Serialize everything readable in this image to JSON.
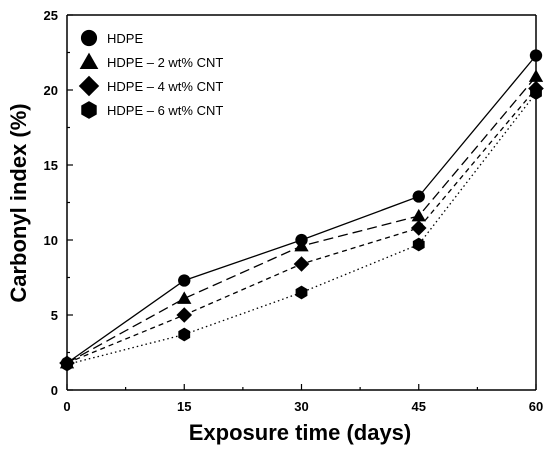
{
  "chart_data": {
    "type": "line",
    "xlabel": "Exposure time (days)",
    "ylabel": "Carbonyl index (%)",
    "xlim": [
      0,
      60
    ],
    "ylim": [
      0,
      25
    ],
    "x_ticks": [
      0,
      15,
      30,
      45,
      60
    ],
    "y_ticks": [
      0,
      5,
      10,
      15,
      20,
      25
    ],
    "grid": false,
    "legend_position": "top-left",
    "x": [
      0,
      15,
      30,
      45,
      60
    ],
    "series": [
      {
        "name": "HDPE",
        "marker": "circle",
        "line_style": "solid",
        "values": [
          1.8,
          7.3,
          10.0,
          12.9,
          22.3
        ]
      },
      {
        "name": "HDPE – 2 wt% CNT",
        "marker": "triangle",
        "line_style": "long-dash",
        "values": [
          1.8,
          6.1,
          9.6,
          11.6,
          20.9
        ]
      },
      {
        "name": "HDPE – 4 wt% CNT",
        "marker": "diamond",
        "line_style": "short-dash",
        "values": [
          1.8,
          5.0,
          8.4,
          10.8,
          20.1
        ]
      },
      {
        "name": "HDPE – 6 wt% CNT",
        "marker": "hexagon",
        "line_style": "dotted",
        "values": [
          1.7,
          3.7,
          6.5,
          9.7,
          19.8
        ]
      }
    ],
    "colors": {
      "lines": "#000000",
      "markers": "#000000",
      "background": "#ffffff"
    }
  }
}
